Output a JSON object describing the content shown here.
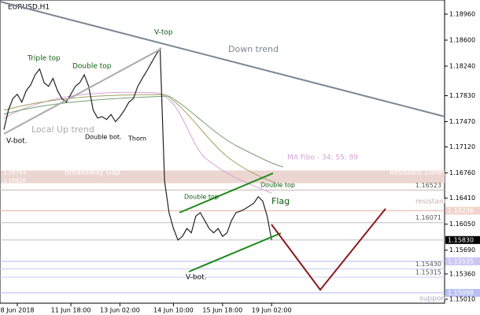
{
  "chart_data": {
    "type": "line",
    "title": "EURUSD,H1",
    "categories": [
      null,
      null,
      null,
      "8 Jun 2018",
      null,
      null,
      null,
      null,
      null,
      null,
      null,
      null,
      null,
      null,
      null,
      "11 Jun 18:00",
      null,
      null,
      null,
      null,
      null,
      null,
      null,
      null,
      null,
      null,
      "13 Jun 02:00",
      null,
      null,
      null,
      null,
      null,
      null,
      null,
      null,
      null,
      null,
      null,
      "14 Jun 10:00",
      null,
      null,
      null,
      null,
      null,
      null,
      null,
      null,
      null,
      null,
      "15 Jun 18:00",
      null,
      null,
      null,
      null,
      null,
      null,
      null,
      null,
      null,
      null,
      "19 Jun 02:00"
    ],
    "series": [
      {
        "color": "#222222",
        "values": [
          1.1736,
          1.1763,
          1.1779,
          1.1785,
          1.1774,
          1.179,
          1.1798,
          1.1812,
          1.182,
          1.1801,
          1.1796,
          1.1807,
          1.179,
          1.1779,
          1.1774,
          1.1785,
          1.1796,
          1.1801,
          1.1812,
          1.1796,
          1.1763,
          1.1752,
          1.1754,
          1.175,
          1.1757,
          1.1747,
          1.1754,
          1.1763,
          1.1774,
          1.1779,
          1.1796,
          1.1807,
          1.1817,
          1.1828,
          1.1839,
          1.1848,
          1.1665,
          1.1621,
          1.1599,
          1.1583,
          1.1588,
          1.1599,
          1.1593,
          1.1616,
          1.1621,
          1.161,
          1.1599,
          1.1593,
          1.1599,
          1.1588,
          1.1593,
          1.161,
          1.1621,
          1.1623,
          1.1626,
          1.163,
          1.1634,
          1.1643,
          1.1637,
          1.1616,
          1.1583
        ]
      }
    ],
    "ylim": [
      1.14955,
      1.19156
    ],
    "yticks": [
      {
        "value": 1.1896,
        "label": "1.18960"
      },
      {
        "value": 1.186,
        "label": "1.18600"
      },
      {
        "value": 1.1824,
        "label": "1.18240"
      },
      {
        "value": 1.1783,
        "label": "1.17830"
      },
      {
        "value": 1.1747,
        "label": "1.17470"
      },
      {
        "value": 1.1712,
        "label": "1.17120"
      },
      {
        "value": 1.1676,
        "label": "1.16760"
      },
      {
        "value": 1.1641,
        "label": "1.16410"
      },
      {
        "value": 1.1605,
        "label": "1.16050"
      },
      {
        "value": 1.1569,
        "label": "1.15690"
      },
      {
        "value": 1.1536,
        "label": "1.15360"
      },
      {
        "value": 1.1501,
        "label": "1.15010"
      }
    ],
    "zone": {
      "values": [
        1.16794,
        1.16618
      ],
      "color": "#ecd6d2"
    },
    "levels": [
      {
        "value": 1.16523,
        "color": "#c9b3b3"
      },
      {
        "value": 1.16236,
        "color": "#e4b3a8",
        "tag": "#f2d3cc"
      },
      {
        "value": 1.16071,
        "color": "#bdbdbd"
      },
      {
        "value": {
          "value": 1.1583,
          "label": "1.15830"
        },
        "color": "#bdbdbd",
        "tag": "#000000"
      },
      {
        "value": 1.15535,
        "color": "#b8b8f0",
        "tag": "#c8c8f5"
      },
      {
        "value": {
          "value": 1.1543,
          "label": "1.15430"
        },
        "color": "#c8c8f0"
      },
      {
        "value": 1.15315,
        "color": "#c8c8f0"
      },
      {
        "value": 1.15098,
        "color": "#b8b8f0",
        "tag": "#b8c0f5"
      }
    ],
    "annotations": [
      "Triple top",
      "Double top",
      "V-top",
      "Down trend",
      "Local Up trend",
      "V-bot.",
      "Double bot.",
      "Thorn",
      "MA Fibo - 34; 55; 89",
      "Breakaway Gap",
      "Resistant Zone",
      "resistant",
      "Double top",
      "Double top",
      "Flag",
      "V-bot.",
      "support"
    ]
  }
}
